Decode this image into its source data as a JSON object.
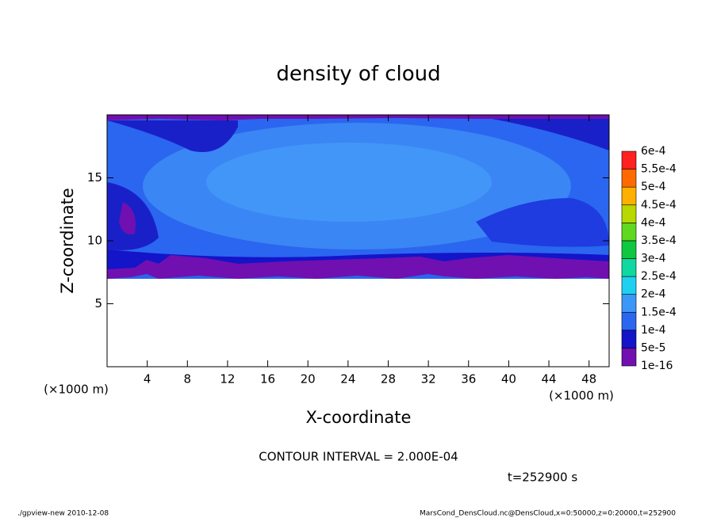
{
  "chart_data": {
    "type": "contour",
    "title": "density of cloud",
    "xlabel": "X-coordinate",
    "ylabel": "Z-coordinate",
    "x_unit_label": "(×1000 m)",
    "y_unit_label": "(×1000 m)",
    "xlim": [
      0,
      50
    ],
    "ylim": [
      0,
      20
    ],
    "xticks": [
      4,
      8,
      12,
      16,
      20,
      24,
      28,
      32,
      36,
      40,
      44,
      48
    ],
    "yticks": [
      5,
      10,
      15
    ],
    "colorbar": {
      "levels": [
        {
          "value": 1e-16,
          "label": "1e-16"
        },
        {
          "value": 5e-05,
          "label": "5e-5"
        },
        {
          "value": 0.0001,
          "label": "1e-4"
        },
        {
          "value": 0.00015,
          "label": "1.5e-4"
        },
        {
          "value": 0.0002,
          "label": "2e-4"
        },
        {
          "value": 0.00025,
          "label": "2.5e-4"
        },
        {
          "value": 0.0003,
          "label": "3e-4"
        },
        {
          "value": 0.00035,
          "label": "3.5e-4"
        },
        {
          "value": 0.0004,
          "label": "4e-4"
        },
        {
          "value": 0.00045,
          "label": "4.5e-4"
        },
        {
          "value": 0.0005,
          "label": "5e-4"
        },
        {
          "value": 0.00055,
          "label": "5.5e-4"
        },
        {
          "value": 0.0006,
          "label": "6e-4"
        }
      ],
      "colors": [
        "#7010b0",
        "#1414c8",
        "#2a66f0",
        "#3c98f8",
        "#20d0f0",
        "#10d8a0",
        "#10c840",
        "#60d820",
        "#b8d800",
        "#ffb000",
        "#ff6a00",
        "#ff2020"
      ]
    },
    "annotation": "CONTOUR INTERVAL = 2.000E-04",
    "time_label": "t=252900 s",
    "footer_left": "./gpview-new  2010-12-08",
    "footer_right": "MarsCond_DensCloud.nc@DensCloud,x=0:50000,z=0:20000,t=252900"
  }
}
